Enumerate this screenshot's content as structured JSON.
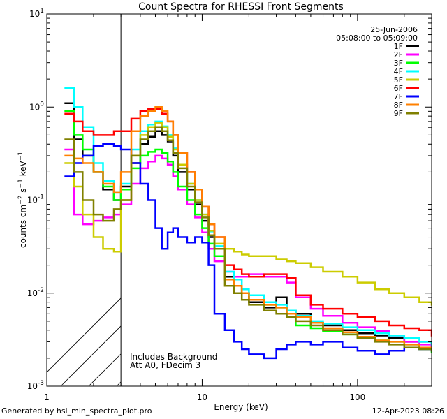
{
  "chart_data": {
    "type": "line",
    "title": "Count Spectra for RHESSI Front Segments",
    "xlabel": "Energy (keV)",
    "ylabel": "counts cm-2 s-1 keV-1",
    "xscale": "log",
    "yscale": "log",
    "xlim": [
      1,
      300
    ],
    "ylim": [
      0.001,
      10
    ],
    "x_ticks": [
      {
        "v": 1,
        "label": "1"
      },
      {
        "v": 10,
        "label": "10"
      },
      {
        "v": 100,
        "label": "100"
      }
    ],
    "y_ticks": [
      {
        "v": 0.001,
        "base": "10",
        "exp": "-3"
      },
      {
        "v": 0.01,
        "base": "10",
        "exp": "-2"
      },
      {
        "v": 0.1,
        "base": "10",
        "exp": "-1"
      },
      {
        "v": 1,
        "base": "10",
        "exp": "0"
      },
      {
        "v": 10,
        "base": "10",
        "exp": "1"
      }
    ],
    "shaded_region": {
      "from": 1,
      "to": 3,
      "note": "hatched below 3 keV"
    },
    "date": "25-Jun-2006",
    "time_range": "05:08:00 to 05:09:00",
    "annotations": [
      "Includes Background",
      "Att A0, FDecim 3"
    ],
    "series": [
      {
        "name": "1F",
        "color": "#000000",
        "x": [
          1.3,
          1.5,
          1.7,
          2.0,
          2.3,
          2.7,
          3.0,
          3.5,
          4.0,
          4.5,
          5.0,
          5.5,
          6.0,
          6.5,
          7.0,
          8.0,
          9.0,
          10.0,
          11.0,
          12.0,
          14.0,
          16.0,
          18.0,
          20.0,
          25.0,
          30.0,
          35.0,
          40.0,
          50.0,
          60.0,
          80.0,
          100.0,
          130.0,
          160.0,
          200.0,
          250.0,
          300.0
        ],
        "y": [
          1.1,
          0.45,
          0.3,
          0.2,
          0.13,
          0.1,
          0.14,
          0.25,
          0.4,
          0.48,
          0.55,
          0.5,
          0.42,
          0.3,
          0.2,
          0.13,
          0.09,
          0.06,
          0.04,
          0.03,
          0.015,
          0.012,
          0.01,
          0.008,
          0.007,
          0.009,
          0.0065,
          0.006,
          0.0048,
          0.0045,
          0.004,
          0.0037,
          0.0035,
          0.0033,
          0.003,
          0.003,
          0.0027
        ]
      },
      {
        "name": "2F",
        "color": "#ff00ff",
        "x": [
          1.3,
          1.5,
          1.7,
          2.0,
          2.3,
          2.7,
          3.0,
          3.5,
          4.0,
          4.5,
          5.0,
          5.5,
          6.0,
          6.5,
          7.0,
          8.0,
          9.0,
          10.0,
          11.0,
          12.0,
          14.0,
          16.0,
          18.0,
          20.0,
          25.0,
          30.0,
          35.0,
          40.0,
          50.0,
          60.0,
          80.0,
          100.0,
          130.0,
          160.0,
          200.0,
          250.0,
          300.0
        ],
        "y": [
          0.35,
          0.07,
          0.055,
          0.06,
          0.065,
          0.07,
          0.09,
          0.15,
          0.22,
          0.26,
          0.3,
          0.28,
          0.24,
          0.18,
          0.13,
          0.09,
          0.065,
          0.045,
          0.03,
          0.022,
          0.017,
          0.015,
          0.015,
          0.016,
          0.015,
          0.015,
          0.013,
          0.009,
          0.0068,
          0.0057,
          0.0048,
          0.0043,
          0.0039,
          0.0035,
          0.003,
          0.0028,
          0.0025
        ]
      },
      {
        "name": "3F",
        "color": "#00ff00",
        "x": [
          1.3,
          1.5,
          1.7,
          2.0,
          2.3,
          2.7,
          3.0,
          3.5,
          4.0,
          4.5,
          5.0,
          5.5,
          6.0,
          6.5,
          7.0,
          8.0,
          9.0,
          10.0,
          11.0,
          12.0,
          14.0,
          16.0,
          18.0,
          20.0,
          25.0,
          30.0,
          35.0,
          40.0,
          50.0,
          60.0,
          80.0,
          100.0,
          130.0,
          160.0,
          200.0,
          250.0,
          300.0
        ],
        "y": [
          0.9,
          0.5,
          0.35,
          0.2,
          0.14,
          0.1,
          0.13,
          0.22,
          0.3,
          0.33,
          0.35,
          0.32,
          0.26,
          0.2,
          0.14,
          0.1,
          0.07,
          0.05,
          0.034,
          0.025,
          0.014,
          0.012,
          0.01,
          0.0085,
          0.0075,
          0.007,
          0.0055,
          0.0045,
          0.0042,
          0.0039,
          0.0036,
          0.0033,
          0.0031,
          0.003,
          0.0028,
          0.0025,
          0.0023
        ]
      },
      {
        "name": "4F",
        "color": "#00ffff",
        "x": [
          1.3,
          1.5,
          1.7,
          2.0,
          2.3,
          2.7,
          3.0,
          3.5,
          4.0,
          4.5,
          5.0,
          5.5,
          6.0,
          6.5,
          7.0,
          8.0,
          9.0,
          10.0,
          11.0,
          12.0,
          14.0,
          16.0,
          18.0,
          20.0,
          25.0,
          30.0,
          35.0,
          40.0,
          50.0,
          60.0,
          80.0,
          100.0,
          130.0,
          160.0,
          200.0,
          250.0,
          300.0
        ],
        "y": [
          1.6,
          1.0,
          0.6,
          0.25,
          0.16,
          0.12,
          0.15,
          0.35,
          0.55,
          0.65,
          0.7,
          0.62,
          0.5,
          0.36,
          0.24,
          0.15,
          0.1,
          0.07,
          0.046,
          0.032,
          0.017,
          0.014,
          0.011,
          0.0095,
          0.008,
          0.0075,
          0.0065,
          0.0057,
          0.005,
          0.0047,
          0.0043,
          0.004,
          0.0037,
          0.0035,
          0.0033,
          0.003,
          0.0028
        ]
      },
      {
        "name": "5F",
        "color": "#cccc00",
        "x": [
          1.3,
          1.5,
          1.7,
          2.0,
          2.3,
          2.7,
          3.0,
          3.5,
          4.0,
          4.5,
          5.0,
          5.5,
          6.0,
          6.5,
          7.0,
          8.0,
          9.0,
          10.0,
          11.0,
          12.0,
          14.0,
          16.0,
          18.0,
          20.0,
          25.0,
          30.0,
          35.0,
          40.0,
          50.0,
          60.0,
          80.0,
          100.0,
          130.0,
          160.0,
          200.0,
          250.0,
          300.0
        ],
        "y": [
          0.25,
          0.14,
          0.07,
          0.04,
          0.03,
          0.028,
          0.1,
          0.3,
          0.5,
          0.6,
          0.68,
          0.6,
          0.48,
          0.35,
          0.24,
          0.15,
          0.1,
          0.07,
          0.047,
          0.034,
          0.03,
          0.028,
          0.026,
          0.025,
          0.025,
          0.023,
          0.022,
          0.021,
          0.019,
          0.017,
          0.015,
          0.013,
          0.011,
          0.01,
          0.009,
          0.008,
          0.0075
        ]
      },
      {
        "name": "6F",
        "color": "#ff0000",
        "x": [
          1.3,
          1.5,
          1.7,
          2.0,
          2.3,
          2.7,
          3.0,
          3.5,
          4.0,
          4.5,
          5.0,
          5.5,
          6.0,
          6.5,
          7.0,
          8.0,
          9.0,
          10.0,
          11.0,
          12.0,
          14.0,
          16.0,
          18.0,
          20.0,
          25.0,
          30.0,
          35.0,
          40.0,
          50.0,
          60.0,
          80.0,
          100.0,
          130.0,
          160.0,
          200.0,
          250.0,
          300.0
        ],
        "y": [
          0.85,
          0.7,
          0.55,
          0.5,
          0.5,
          0.55,
          0.55,
          0.75,
          0.9,
          0.95,
          0.95,
          0.85,
          0.7,
          0.5,
          0.32,
          0.2,
          0.13,
          0.085,
          0.055,
          0.04,
          0.02,
          0.018,
          0.016,
          0.015,
          0.016,
          0.016,
          0.0145,
          0.0095,
          0.0075,
          0.0068,
          0.006,
          0.0055,
          0.005,
          0.0045,
          0.0042,
          0.004,
          0.0035
        ]
      },
      {
        "name": "7F",
        "color": "#0000ff",
        "x": [
          1.3,
          1.5,
          1.7,
          2.0,
          2.3,
          2.7,
          3.0,
          3.5,
          4.0,
          4.5,
          5.0,
          5.5,
          6.0,
          6.5,
          7.0,
          8.0,
          9.0,
          10.0,
          11.0,
          12.0,
          14.0,
          16.0,
          18.0,
          20.0,
          25.0,
          30.0,
          35.0,
          40.0,
          50.0,
          60.0,
          80.0,
          100.0,
          130.0,
          160.0,
          200.0,
          250.0,
          300.0
        ],
        "y": [
          0.18,
          0.25,
          0.3,
          0.38,
          0.4,
          0.38,
          0.35,
          0.25,
          0.15,
          0.1,
          0.05,
          0.03,
          0.045,
          0.05,
          0.04,
          0.035,
          0.04,
          0.035,
          0.02,
          0.006,
          0.004,
          0.003,
          0.0025,
          0.0022,
          0.002,
          0.0025,
          0.0028,
          0.003,
          0.0028,
          0.003,
          0.0026,
          0.0024,
          0.0022,
          0.0024,
          0.0026,
          0.0025,
          0.0024
        ]
      },
      {
        "name": "8F",
        "color": "#ff8000",
        "x": [
          1.3,
          1.5,
          1.7,
          2.0,
          2.3,
          2.7,
          3.0,
          3.5,
          4.0,
          4.5,
          5.0,
          5.5,
          6.0,
          6.5,
          7.0,
          8.0,
          9.0,
          10.0,
          11.0,
          12.0,
          14.0,
          16.0,
          18.0,
          20.0,
          25.0,
          30.0,
          35.0,
          40.0,
          50.0,
          60.0,
          80.0,
          100.0,
          130.0,
          160.0,
          200.0,
          250.0,
          300.0
        ],
        "y": [
          0.3,
          0.28,
          0.25,
          0.2,
          0.15,
          0.12,
          0.2,
          0.55,
          0.8,
          0.9,
          1.0,
          0.9,
          0.7,
          0.5,
          0.32,
          0.2,
          0.13,
          0.085,
          0.055,
          0.04,
          0.014,
          0.012,
          0.01,
          0.0085,
          0.0075,
          0.007,
          0.006,
          0.0055,
          0.0048,
          0.0042,
          0.0038,
          0.0034,
          0.0031,
          0.003,
          0.0028,
          0.0026,
          0.0025
        ]
      },
      {
        "name": "9F",
        "color": "#808000",
        "x": [
          1.3,
          1.5,
          1.7,
          2.0,
          2.3,
          2.7,
          3.0,
          3.5,
          4.0,
          4.5,
          5.0,
          5.5,
          6.0,
          6.5,
          7.0,
          8.0,
          9.0,
          10.0,
          11.0,
          12.0,
          14.0,
          16.0,
          18.0,
          20.0,
          25.0,
          30.0,
          35.0,
          40.0,
          50.0,
          60.0,
          80.0,
          100.0,
          130.0,
          160.0,
          200.0,
          250.0,
          300.0
        ],
        "y": [
          0.45,
          0.2,
          0.1,
          0.07,
          0.06,
          0.08,
          0.1,
          0.3,
          0.45,
          0.55,
          0.6,
          0.55,
          0.44,
          0.32,
          0.22,
          0.14,
          0.095,
          0.065,
          0.042,
          0.03,
          0.012,
          0.01,
          0.0085,
          0.0075,
          0.0065,
          0.006,
          0.0055,
          0.005,
          0.0045,
          0.004,
          0.0036,
          0.0033,
          0.003,
          0.0028,
          0.0026,
          0.0025,
          0.0024
        ]
      }
    ]
  },
  "footer": {
    "left": "Generated by hsi_min_spectra_plot.pro",
    "right": "12-Apr-2023 08:26"
  }
}
